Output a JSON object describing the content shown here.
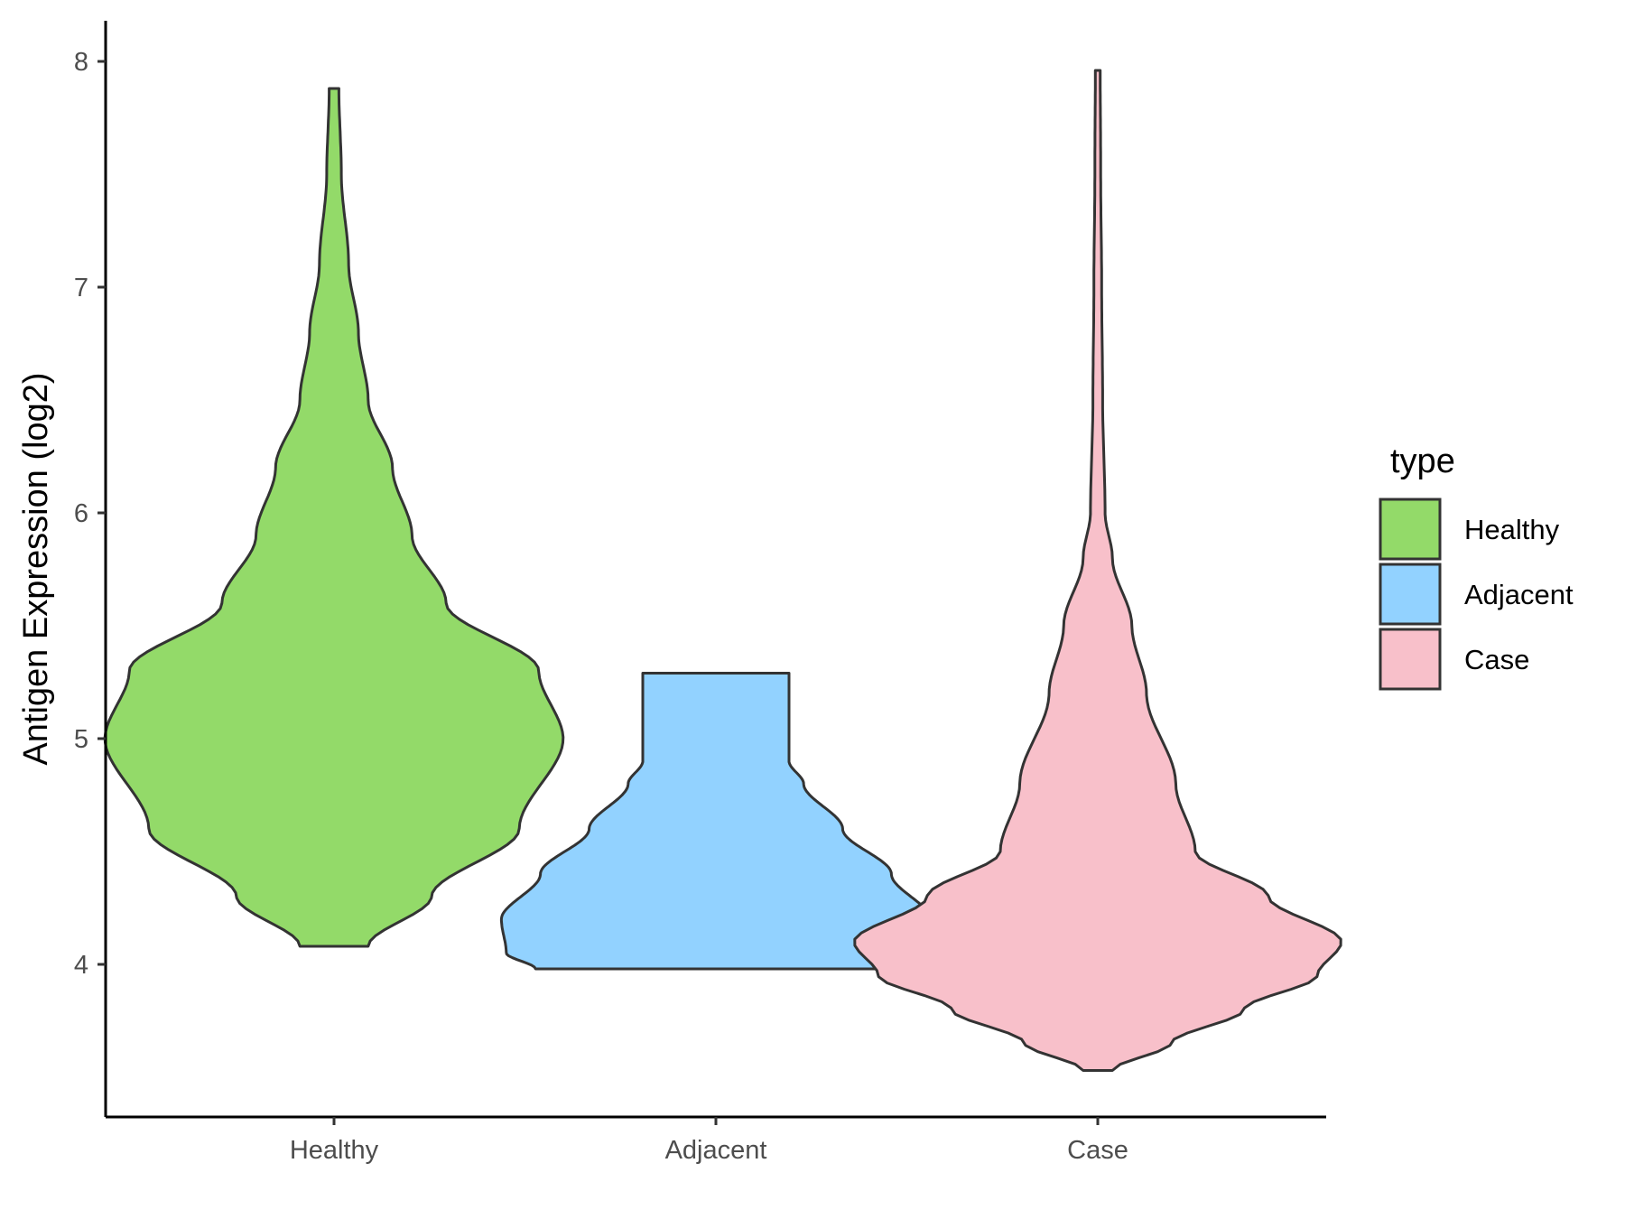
{
  "chart_data": {
    "type": "violin",
    "title": "",
    "xlabel": "",
    "ylabel": "Antigen Expression (log2)",
    "ylim": [
      3.4,
      8.2
    ],
    "yticks": [
      4,
      5,
      6,
      7,
      8
    ],
    "categories": [
      "Healthy",
      "Adjacent",
      "Case"
    ],
    "grid": false,
    "legend": {
      "title": "type",
      "placement": "right",
      "entries": [
        "Healthy",
        "Adjacent",
        "Case"
      ]
    },
    "colors": {
      "Healthy": "#93DA69",
      "Adjacent": "#92D2FF",
      "Case": "#F8C0CA",
      "outline": "#333333"
    },
    "series": [
      {
        "category": "Healthy",
        "min": 4.08,
        "max": 7.88,
        "density_profile": [
          [
            4.08,
            0.07
          ],
          [
            4.3,
            0.2
          ],
          [
            4.6,
            0.38
          ],
          [
            5.0,
            0.47
          ],
          [
            5.3,
            0.42
          ],
          [
            5.6,
            0.23
          ],
          [
            5.9,
            0.16
          ],
          [
            6.2,
            0.12
          ],
          [
            6.5,
            0.07
          ],
          [
            6.8,
            0.05
          ],
          [
            7.1,
            0.03
          ],
          [
            7.5,
            0.015
          ],
          [
            7.88,
            0.01
          ]
        ]
      },
      {
        "category": "Adjacent",
        "min": 3.98,
        "max": 5.29,
        "density_profile": [
          [
            3.98,
            0.37
          ],
          [
            4.05,
            0.43
          ],
          [
            4.2,
            0.44
          ],
          [
            4.4,
            0.36
          ],
          [
            4.6,
            0.26
          ],
          [
            4.8,
            0.18
          ],
          [
            4.9,
            0.15
          ],
          [
            5.1,
            0.15
          ],
          [
            5.29,
            0.15
          ]
        ]
      },
      {
        "category": "Case",
        "min": 3.53,
        "max": 7.96,
        "density_profile": [
          [
            3.53,
            0.03
          ],
          [
            3.65,
            0.15
          ],
          [
            3.8,
            0.3
          ],
          [
            3.95,
            0.45
          ],
          [
            4.1,
            0.5
          ],
          [
            4.3,
            0.35
          ],
          [
            4.5,
            0.2
          ],
          [
            4.8,
            0.16
          ],
          [
            5.2,
            0.1
          ],
          [
            5.5,
            0.07
          ],
          [
            5.8,
            0.03
          ],
          [
            6.0,
            0.015
          ],
          [
            6.5,
            0.01
          ],
          [
            7.0,
            0.008
          ],
          [
            7.5,
            0.006
          ],
          [
            7.96,
            0.005
          ]
        ]
      }
    ]
  }
}
